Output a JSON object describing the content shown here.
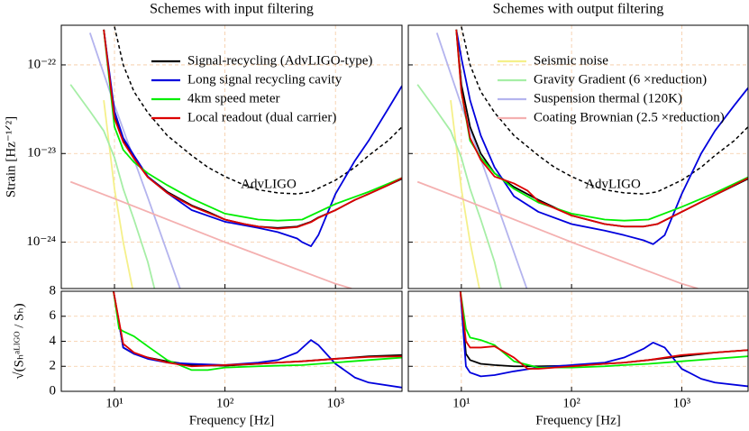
{
  "chart_data": [
    {
      "type": "line",
      "title": "Schemes with input filtering",
      "ylabel": "Strain [Hz⁻¹ᐟ²]",
      "xscale": "log",
      "yscale": "log",
      "xlim": [
        3.3,
        4000
      ],
      "ylim": [
        3e-25,
        2.8e-22
      ],
      "xticks": [
        10,
        100,
        1000
      ],
      "yticks": [
        {
          "value": 1e-22,
          "label": "10⁻²²"
        },
        {
          "value": 1e-23,
          "label": "10⁻²³"
        },
        {
          "value": 1e-24,
          "label": "10⁻²⁴"
        }
      ],
      "grid": true,
      "legend": "upper right",
      "annotations": [
        "AdvLIGO"
      ],
      "series": [
        {
          "color": "#f5f08a",
          "x": [
            8,
            10,
            12,
            15
          ],
          "values": [
            4e-23,
            4e-24,
            1e-24,
            2.5e-25
          ]
        },
        {
          "color": "#a6eea6",
          "x": [
            4,
            6,
            8,
            10,
            12,
            15,
            20,
            23
          ],
          "values": [
            6e-23,
            3e-23,
            1.8e-23,
            9e-24,
            4e-24,
            1.8e-24,
            6e-25,
            3e-25
          ]
        },
        {
          "color": "#b4b4ee",
          "x": [
            6,
            10,
            20,
            40
          ],
          "values": [
            2.3e-22,
            3.5e-23,
            3.2e-24,
            2.8e-25
          ]
        },
        {
          "color": "#f4b0b0",
          "x": [
            4,
            10,
            100,
            1000,
            1400
          ],
          "values": [
            4.8e-24,
            3.1e-24,
            1e-24,
            3.4e-25,
            3e-25
          ]
        },
        {
          "color": "#000000",
          "dash": true,
          "x": [
            10,
            12,
            15,
            20,
            30,
            50,
            70,
            100,
            150,
            200,
            300,
            450,
            600,
            1000,
            1500,
            2000,
            3000,
            4000
          ],
          "values": [
            2.7e-22,
            1e-22,
            5e-23,
            2.9e-23,
            1.6e-23,
            9.5e-24,
            7e-24,
            5.5e-24,
            4.4e-24,
            3.9e-24,
            3.6e-24,
            3.5e-24,
            3.7e-24,
            5e-24,
            7e-24,
            9.5e-24,
            1.4e-23,
            2e-23
          ]
        },
        {
          "name": "Signal-recycling (AdvLIGO-type)",
          "color": "#000000",
          "x": [
            8,
            10,
            12,
            15,
            20,
            30,
            50,
            70,
            100,
            150,
            200,
            300,
            450,
            600,
            700,
            1000,
            1500,
            2000,
            3000,
            4000
          ],
          "values": [
            2.5e-22,
            2.6e-23,
            1.4e-23,
            9e-24,
            5.5e-24,
            3.7e-24,
            2.6e-24,
            2.2e-24,
            1.8e-24,
            1.6e-24,
            1.5e-24,
            1.45e-24,
            1.5e-24,
            1.7e-24,
            1.9e-24,
            2.3e-24,
            3e-24,
            3.5e-24,
            4.4e-24,
            5.2e-24
          ]
        },
        {
          "name": "Long signal recycling cavity",
          "color": "#0000dd",
          "x": [
            8,
            10,
            12,
            15,
            20,
            30,
            50,
            100,
            200,
            300,
            450,
            500,
            600,
            700,
            1000,
            1500,
            2000,
            3000,
            4000
          ],
          "values": [
            2.5e-22,
            3e-23,
            1.5e-23,
            9.5e-24,
            5.5e-24,
            3.6e-24,
            2.3e-24,
            1.7e-24,
            1.45e-24,
            1.3e-24,
            1.1e-24,
            1e-24,
            9e-25,
            1.2e-24,
            3.5e-24,
            8.3e-24,
            1.4e-23,
            3.2e-23,
            5.8e-23
          ]
        },
        {
          "name": "4km speed meter",
          "color": "#00ee00",
          "x": [
            8,
            10,
            12,
            15,
            20,
            30,
            50,
            100,
            200,
            300,
            500,
            1000,
            2000,
            4000
          ],
          "values": [
            2.5e-22,
            2e-23,
            1.1e-23,
            8e-24,
            6e-24,
            4.4e-24,
            3.1e-24,
            2.1e-24,
            1.8e-24,
            1.75e-24,
            1.8e-24,
            2.7e-24,
            3.7e-24,
            5.3e-24
          ]
        },
        {
          "name": "Local readout (dual carrier)",
          "color": "#dd0000",
          "x": [
            8,
            10,
            12,
            15,
            20,
            30,
            50,
            70,
            100,
            150,
            200,
            300,
            450,
            600,
            700,
            1000,
            1500,
            2000,
            3000,
            4000
          ],
          "values": [
            2.5e-22,
            2.5e-23,
            1.35e-23,
            8.8e-24,
            5.4e-24,
            3.6e-24,
            2.55e-24,
            2.15e-24,
            1.8e-24,
            1.6e-24,
            1.5e-24,
            1.42e-24,
            1.48e-24,
            1.68e-24,
            1.88e-24,
            2.3e-24,
            3e-24,
            3.5e-24,
            4.4e-24,
            5.3e-24
          ]
        }
      ]
    },
    {
      "type": "line",
      "title": "Schemes with output filtering",
      "ytick_labels": false,
      "xscale": "log",
      "yscale": "log",
      "xlim": [
        3.3,
        4000
      ],
      "ylim": [
        3e-25,
        2.8e-22
      ],
      "xticks": [
        10,
        100,
        1000
      ],
      "yticks": [
        1e-22,
        1e-23,
        1e-24
      ],
      "grid": true,
      "legend": "upper right",
      "annotations": [
        "AdvLIGO"
      ],
      "series": [
        {
          "name": "Seismic noise",
          "color": "#f5f08a",
          "x": [
            8,
            10,
            12,
            15
          ],
          "values": [
            4e-23,
            4e-24,
            1e-24,
            2.5e-25
          ]
        },
        {
          "name": "Gravity Gradient (6 ×reduction)",
          "color": "#a6eea6",
          "x": [
            4,
            6,
            8,
            10,
            12,
            15,
            20,
            23
          ],
          "values": [
            6e-23,
            3e-23,
            1.8e-23,
            9e-24,
            4e-24,
            1.8e-24,
            6e-25,
            3e-25
          ]
        },
        {
          "name": "Suspension thermal (120K)",
          "color": "#b4b4ee",
          "x": [
            6,
            10,
            20,
            40
          ],
          "values": [
            2.3e-22,
            3.5e-23,
            3.2e-24,
            2.8e-25
          ]
        },
        {
          "name": "Coating Brownian (2.5 ×reduction)",
          "color": "#f4b0b0",
          "x": [
            4,
            10,
            100,
            1000,
            1400
          ],
          "values": [
            4.8e-24,
            3.1e-24,
            1e-24,
            3.4e-25,
            3e-25
          ]
        },
        {
          "color": "#000000",
          "dash": true,
          "x": [
            10,
            12,
            15,
            20,
            30,
            50,
            70,
            100,
            150,
            200,
            300,
            450,
            600,
            1000,
            1500,
            2000,
            3000,
            4000
          ],
          "values": [
            2.7e-22,
            1e-22,
            5e-23,
            2.9e-23,
            1.6e-23,
            9.5e-24,
            7e-24,
            5.5e-24,
            4.4e-24,
            3.9e-24,
            3.6e-24,
            3.5e-24,
            3.7e-24,
            5e-24,
            7e-24,
            9.5e-24,
            1.4e-23,
            2e-23
          ]
        },
        {
          "color": "#000000",
          "x": [
            9,
            10,
            12,
            15,
            20,
            30,
            50,
            100,
            200,
            300,
            450,
            600,
            1000,
            2000,
            4000
          ],
          "values": [
            2.5e-22,
            6e-23,
            2e-23,
            1e-23,
            6e-24,
            4.2e-24,
            3e-24,
            2e-24,
            1.6e-24,
            1.5e-24,
            1.5e-24,
            1.6e-24,
            2.2e-24,
            3.4e-24,
            5.2e-24
          ]
        },
        {
          "color": "#0000dd",
          "x": [
            9,
            10,
            12,
            15,
            20,
            30,
            50,
            100,
            200,
            300,
            450,
            550,
            700,
            1000,
            1500,
            2000,
            3000,
            4000
          ],
          "values": [
            2.5e-22,
            1.2e-22,
            4e-23,
            1.6e-23,
            7e-24,
            3.3e-24,
            2.2e-24,
            1.6e-24,
            1.35e-24,
            1.2e-24,
            1.05e-24,
            9.5e-25,
            1.2e-24,
            3.5e-24,
            1e-23,
            1.8e-23,
            3.5e-23,
            5.5e-23
          ]
        },
        {
          "color": "#00ee00",
          "x": [
            9,
            10,
            12,
            15,
            20,
            30,
            50,
            100,
            200,
            300,
            500,
            1000,
            2000,
            4000
          ],
          "values": [
            2.5e-22,
            5e-23,
            1.4e-23,
            9e-24,
            6e-24,
            4e-24,
            2.8e-24,
            2.1e-24,
            1.8e-24,
            1.75e-24,
            1.8e-24,
            2.5e-24,
            3.6e-24,
            5.4e-24
          ]
        },
        {
          "color": "#dd0000",
          "x": [
            9,
            10,
            12,
            15,
            20,
            30,
            40,
            50,
            100,
            200,
            300,
            450,
            600,
            1000,
            2000,
            4000
          ],
          "values": [
            2.5e-22,
            5e-23,
            1.5e-23,
            8.5e-24,
            5.5e-24,
            4.6e-24,
            3.8e-24,
            2.9e-24,
            2e-24,
            1.6e-24,
            1.5e-24,
            1.5e-24,
            1.6e-24,
            2.2e-24,
            3.4e-24,
            5.3e-24
          ]
        }
      ]
    },
    {
      "type": "line",
      "xlabel": "Frequency [Hz]",
      "ylabel": "√(Sₕᵃᴸᴵᴳᴼ / Sₕ)",
      "xscale": "log",
      "xlim": [
        3.3,
        4000
      ],
      "ylim": [
        0,
        8
      ],
      "xticks": [
        {
          "value": 10,
          "label": "10¹"
        },
        {
          "value": 100,
          "label": "10²"
        },
        {
          "value": 1000,
          "label": "10³"
        }
      ],
      "yticks": [
        0,
        2,
        4,
        6,
        8
      ],
      "grid": true,
      "series": [
        {
          "color": "#000000",
          "x": [
            9.8,
            12,
            15,
            20,
            30,
            50,
            100,
            200,
            300,
            500,
            1000,
            2000,
            4000
          ],
          "values": [
            8,
            3.5,
            3,
            2.7,
            2.4,
            2.1,
            2.05,
            2.2,
            2.3,
            2.4,
            2.6,
            2.8,
            2.9
          ]
        },
        {
          "color": "#0000dd",
          "x": [
            9.8,
            12,
            15,
            20,
            30,
            50,
            100,
            200,
            300,
            450,
            600,
            700,
            1000,
            1500,
            2000,
            4000
          ],
          "values": [
            8,
            3.5,
            3,
            2.6,
            2.3,
            2.2,
            2.1,
            2.3,
            2.5,
            3.1,
            4.1,
            3.7,
            2.2,
            1.1,
            0.7,
            0.3
          ]
        },
        {
          "color": "#00ee00",
          "x": [
            9.8,
            11,
            12,
            15,
            20,
            30,
            50,
            70,
            100,
            200,
            300,
            500,
            1000,
            2000,
            4000
          ],
          "values": [
            8,
            5,
            4.8,
            4.4,
            3.6,
            2.5,
            1.7,
            1.7,
            1.9,
            2,
            2.05,
            2.1,
            2.3,
            2.5,
            2.7
          ]
        },
        {
          "color": "#dd0000",
          "x": [
            9.8,
            12,
            15,
            20,
            30,
            50,
            100,
            200,
            300,
            500,
            1000,
            2000,
            4000
          ],
          "values": [
            8,
            3.8,
            3.1,
            2.7,
            2.3,
            2,
            2.1,
            2.2,
            2.3,
            2.4,
            2.6,
            2.75,
            2.8
          ]
        }
      ]
    },
    {
      "type": "line",
      "xlabel": "Frequency [Hz]",
      "ytick_labels": false,
      "xscale": "log",
      "xlim": [
        3.3,
        4000
      ],
      "ylim": [
        0,
        8
      ],
      "xticks": [
        {
          "value": 10,
          "label": "10¹"
        },
        {
          "value": 100,
          "label": "10²"
        },
        {
          "value": 1000,
          "label": "10³"
        }
      ],
      "yticks": [
        0,
        2,
        4,
        6,
        8
      ],
      "grid": true,
      "series": [
        {
          "color": "#000000",
          "x": [
            9.8,
            11,
            12,
            15,
            20,
            30,
            50,
            100,
            200,
            300,
            500,
            1000,
            2000,
            4000
          ],
          "values": [
            8,
            3,
            2.5,
            2.2,
            2.1,
            2,
            2,
            2.05,
            2.2,
            2.3,
            2.5,
            2.8,
            3.1,
            3.3
          ]
        },
        {
          "color": "#0000dd",
          "x": [
            9.8,
            11,
            12,
            15,
            20,
            30,
            50,
            100,
            200,
            300,
            450,
            550,
            700,
            1000,
            1500,
            2000,
            4000
          ],
          "values": [
            8,
            2,
            1.5,
            1.2,
            1.3,
            1.6,
            1.9,
            2.1,
            2.3,
            2.7,
            3.4,
            3.9,
            3.5,
            1.8,
            1,
            0.7,
            0.4
          ]
        },
        {
          "color": "#00ee00",
          "x": [
            9.8,
            11,
            12,
            15,
            20,
            30,
            50,
            100,
            200,
            300,
            500,
            1000,
            2000,
            4000
          ],
          "values": [
            8,
            5,
            4.3,
            4.1,
            3.7,
            2.4,
            1.9,
            1.9,
            2,
            2.1,
            2.2,
            2.4,
            2.6,
            2.8
          ]
        },
        {
          "color": "#dd0000",
          "x": [
            9.8,
            11,
            12,
            15,
            20,
            30,
            40,
            50,
            100,
            200,
            300,
            500,
            1000,
            2000,
            4000
          ],
          "values": [
            8,
            4,
            3.5,
            3.5,
            3.6,
            2.7,
            1.8,
            1.8,
            2,
            2.2,
            2.3,
            2.5,
            2.9,
            3.1,
            3.3
          ]
        }
      ]
    }
  ]
}
